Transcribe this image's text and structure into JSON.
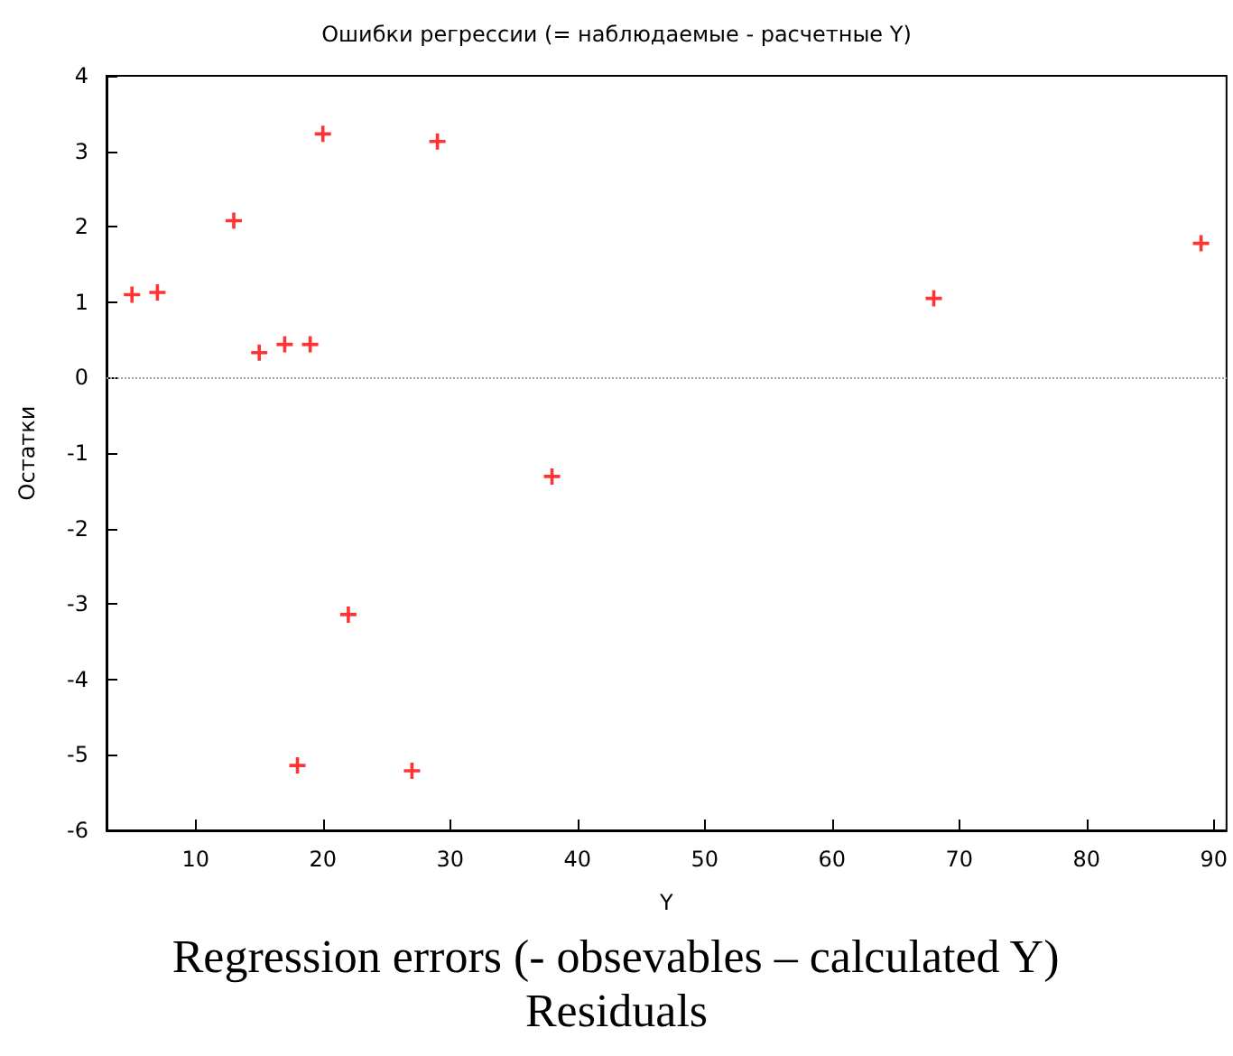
{
  "chart_data": {
    "type": "scatter",
    "title": "Ошибки регрессии (= наблюдаемые - расчетные Y)",
    "xlabel": "Y",
    "ylabel": "Остатки",
    "x": [
      5,
      7,
      13,
      15,
      17,
      19,
      20,
      29,
      38,
      22,
      18,
      27,
      68,
      89
    ],
    "values": [
      1.1,
      1.13,
      2.08,
      0.33,
      0.44,
      0.44,
      3.23,
      3.13,
      -1.31,
      -3.14,
      -5.14,
      -5.21,
      1.05,
      1.78
    ],
    "color": "#ff0000",
    "marker": "cross",
    "xlim": [
      3,
      91
    ],
    "xticks": [
      10,
      20,
      30,
      40,
      50,
      60,
      70,
      80,
      90
    ],
    "ylim": [
      -6,
      4
    ],
    "yticks": [
      -6,
      -5,
      -4,
      -3,
      -2,
      -1,
      0,
      1,
      2,
      3,
      4
    ],
    "ref_lines": [
      {
        "axis": "y",
        "value": 0,
        "color": "#a0a0a0",
        "line_style": "dotted"
      }
    ],
    "annotations": [
      "Regression errors (- obsevables – calculated Y)",
      "Residuals"
    ]
  }
}
